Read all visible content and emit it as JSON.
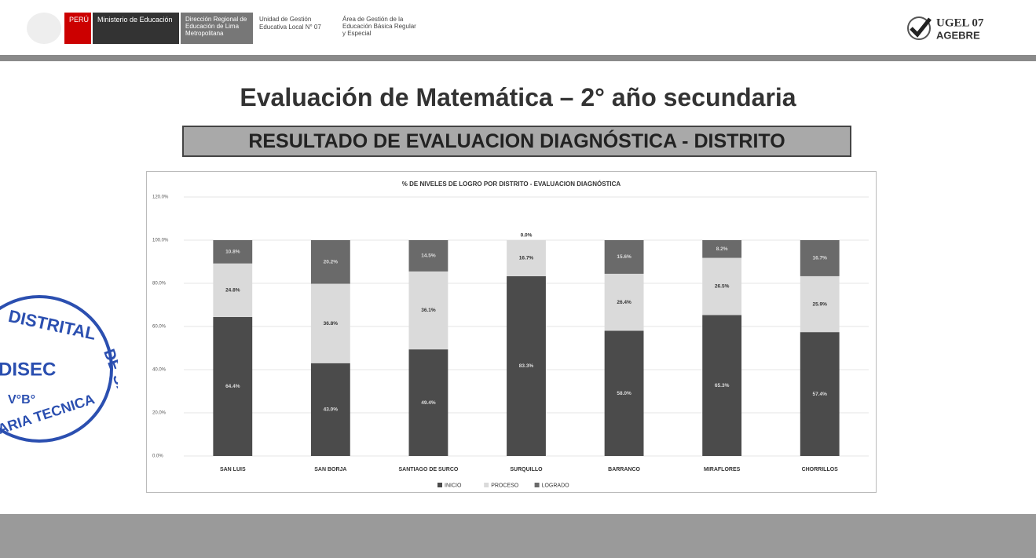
{
  "header": {
    "country": "PERÚ",
    "ministry": "Ministerio de Educación",
    "dre": "Dirección Regional de Educación de Lima Metropolitana",
    "ugel": "Unidad de Gestión Educativa Local N° 07",
    "area": "Área de Gestión de la Educación Básica Regular y Especial",
    "logo_top": "UGEL 07",
    "logo_bottom": "AGEBRE"
  },
  "title": "Evaluación de Matemática – 2° año secundaria",
  "subtitle": "RESULTADO DE EVALUACION DIAGNÓSTICA - DISTRITO",
  "stamp": {
    "top": "DISTRITAL",
    "right": "DE SAN LUIS",
    "center": "DISEC",
    "vb": "V°B°",
    "bottom": "ARIA TECNICA"
  },
  "chart_data": {
    "type": "bar",
    "stacked": true,
    "title": "% DE NIVELES DE LOGRO POR DISTRITO - EVALUACION DIAGNÓSTICA",
    "categories": [
      "SAN LUIS",
      "SAN BORJA",
      "SANTIAGO DE SURCO",
      "SURQUILLO",
      "BARRANCO",
      "MIRAFLORES",
      "CHORRILLOS"
    ],
    "series": [
      {
        "name": "INICIO",
        "color": "#4b4b4b",
        "values": [
          64.4,
          43.0,
          49.4,
          83.3,
          58.0,
          65.3,
          57.4
        ],
        "value_labels": [
          "64.4%",
          "43.0%",
          "49.4%",
          "83.3%",
          "58.0%",
          "65.3%",
          "57.4%"
        ]
      },
      {
        "name": "PROCESO",
        "color": "#dadada",
        "values": [
          24.8,
          36.8,
          36.1,
          16.7,
          26.4,
          26.5,
          25.9
        ],
        "value_labels": [
          "24.8%",
          "36.8%",
          "36.1%",
          "16.7%",
          "26.4%",
          "26.5%",
          "25.9%"
        ]
      },
      {
        "name": "LOGRADO",
        "color": "#6a6a6a",
        "values": [
          10.8,
          20.2,
          14.5,
          0.0,
          15.6,
          8.2,
          16.7
        ],
        "value_labels": [
          "10.8%",
          "20.2%",
          "14.5%",
          "0.0%",
          "15.6%",
          "8.2%",
          "16.7%"
        ]
      }
    ],
    "ylim": [
      0,
      120
    ],
    "yticks": [
      {
        "value": 0,
        "label": "0.0%"
      },
      {
        "value": 20,
        "label": "20.0%"
      },
      {
        "value": 40,
        "label": "40.0%"
      },
      {
        "value": 60,
        "label": "60.0%"
      },
      {
        "value": 80,
        "label": "80.0%"
      },
      {
        "value": 100,
        "label": "100.0%"
      },
      {
        "value": 120,
        "label": "120.0%"
      }
    ],
    "grid": true,
    "legend": "bottom"
  }
}
